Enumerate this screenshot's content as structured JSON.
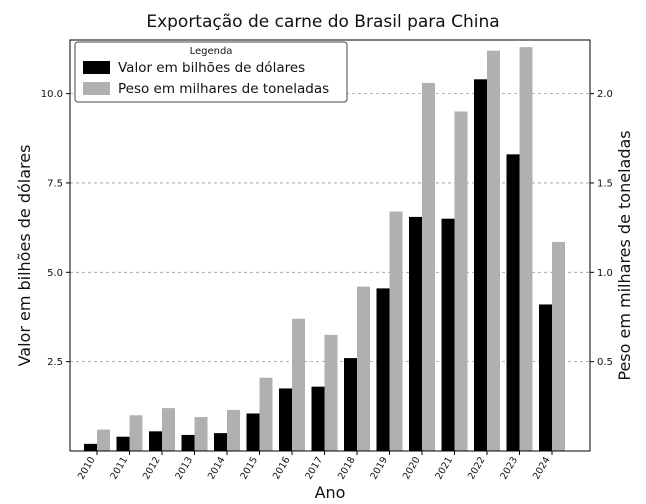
{
  "chart_data": {
    "type": "bar",
    "title": "Exportação de carne do Brasil para China",
    "xlabel": "Ano",
    "ylabel": "Valor em bilhões de dólares",
    "ylabel_right": "Peso em milhares de toneladas",
    "categories": [
      "2010",
      "2011",
      "2012",
      "2013",
      "2014",
      "2015",
      "2016",
      "2017",
      "2018",
      "2019",
      "2020",
      "2021",
      "2022",
      "2023",
      "2024"
    ],
    "series": [
      {
        "name": "Valor em bilhões de dólares",
        "axis": "left",
        "color": "#000000",
        "values": [
          0.2,
          0.4,
          0.55,
          0.45,
          0.5,
          1.05,
          1.75,
          1.8,
          2.6,
          4.55,
          6.55,
          6.5,
          10.4,
          8.3,
          4.1
        ]
      },
      {
        "name": "Peso em milhares de toneladas",
        "axis": "right",
        "color": "#b0b0b0",
        "values": [
          0.12,
          0.2,
          0.24,
          0.19,
          0.23,
          0.41,
          0.74,
          0.65,
          0.92,
          1.34,
          2.06,
          1.9,
          2.24,
          2.26,
          1.17
        ]
      }
    ],
    "ylim": [
      0,
      11.5
    ],
    "ylim_right": [
      0,
      2.3
    ],
    "yticks": [
      "2.5",
      "5.0",
      "7.5",
      "10.0"
    ],
    "yticks_right": [
      "0.5",
      "1.0",
      "1.5",
      "2.0"
    ],
    "grid": "horizontal dashed",
    "legend": {
      "title": "Legenda",
      "placement": "top-left",
      "entries": [
        "Valor em bilhões de dólares",
        "Peso em milhares de toneladas"
      ]
    }
  }
}
